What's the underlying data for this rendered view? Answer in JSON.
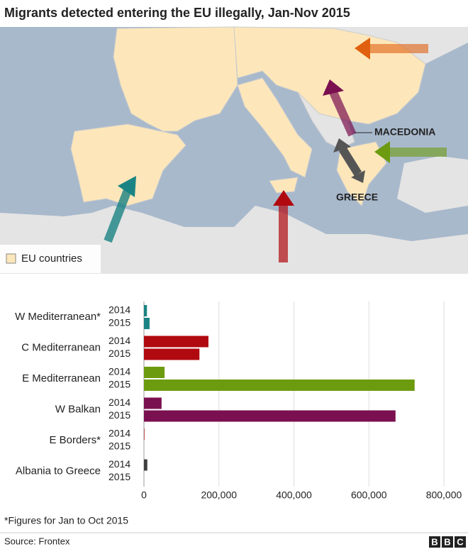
{
  "header": {
    "title": "Migrants detected entering the EU illegally, Jan-Nov 2015"
  },
  "map": {
    "legend": "EU countries",
    "labels": [
      "MACEDONIA",
      "GREECE"
    ]
  },
  "chart_data": {
    "type": "hbar-grouped",
    "categories": [
      "W Mediterranean*",
      "C Mediterranean",
      "E Mediterranean",
      "W Balkan",
      "E Borders*",
      "Albania to Greece"
    ],
    "colors": [
      "#1a8383",
      "#b00a10",
      "#6d9b10",
      "#7a1050",
      "#b00a10",
      "#3f3f3f"
    ],
    "series": [
      {
        "name": "2014",
        "values": [
          8000,
          172000,
          55000,
          47000,
          1300,
          9000
        ]
      },
      {
        "name": "2015",
        "values": [
          15000,
          148000,
          722000,
          671000,
          0,
          0
        ]
      }
    ],
    "xlim": [
      0,
      800000
    ],
    "xticks": [
      0,
      {
        "value": 200000,
        "label": "200,000"
      },
      {
        "value": 400000,
        "label": "400,000"
      },
      {
        "value": 600000,
        "label": "600,000"
      },
      {
        "value": 800000,
        "label": "800,000"
      }
    ],
    "grid": true
  },
  "footer": {
    "note": "*Figures for Jan to Oct 2015",
    "source": "Source: Frontex",
    "logo": [
      "B",
      "B",
      "C"
    ]
  }
}
